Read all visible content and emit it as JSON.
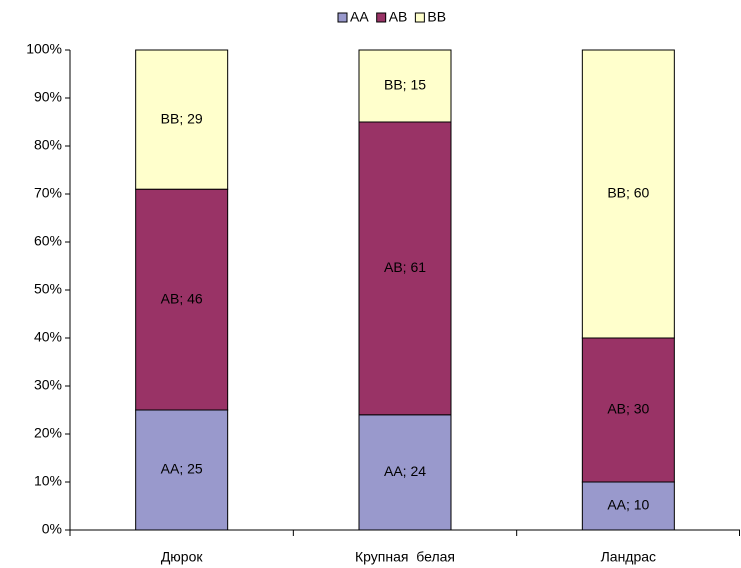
{
  "chart_data": {
    "type": "stacked_bar",
    "categories": [
      "Дюрок",
      "Крупная  белая",
      "Ландрас"
    ],
    "series": [
      {
        "name": "AA",
        "color": "#9999cc",
        "values": [
          25,
          24,
          10
        ],
        "value_labels": [
          "AA; 25",
          "AA; 24",
          "AA; 10"
        ]
      },
      {
        "name": "AB",
        "color": "#993366",
        "values": [
          46,
          61,
          30
        ],
        "value_labels": [
          "AB; 46",
          "AB; 61",
          "AB; 30"
        ]
      },
      {
        "name": "BB",
        "color": "#ffffcc",
        "values": [
          29,
          15,
          60
        ],
        "value_labels": [
          "BB; 29",
          "BB; 15",
          "BB; 60"
        ]
      }
    ],
    "ylim": [
      0,
      100
    ],
    "yticks": [
      {
        "value": 0,
        "label": "0%"
      },
      {
        "value": 10,
        "label": "10%"
      },
      {
        "value": 20,
        "label": "20%"
      },
      {
        "value": 30,
        "label": "30%"
      },
      {
        "value": 40,
        "label": "40%"
      },
      {
        "value": 50,
        "label": "50%"
      },
      {
        "value": 60,
        "label": "60%"
      },
      {
        "value": 70,
        "label": "70%"
      },
      {
        "value": 80,
        "label": "80%"
      },
      {
        "value": 90,
        "label": "90%"
      },
      {
        "value": 100,
        "label": "100%"
      }
    ],
    "legend": "top"
  }
}
